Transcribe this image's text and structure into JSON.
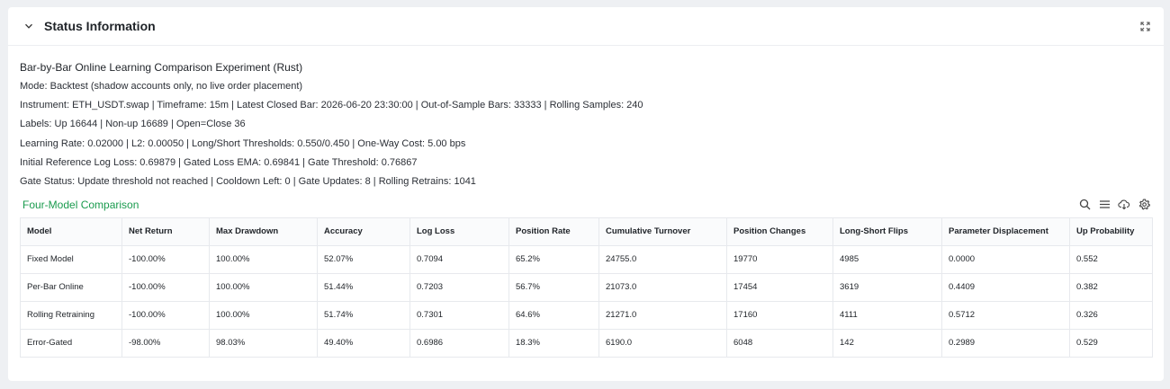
{
  "panel": {
    "title": "Status Information"
  },
  "info": {
    "experiment_title": "Bar-by-Bar Online Learning Comparison Experiment (Rust)",
    "lines": [
      "Mode: Backtest (shadow accounts only, no live order placement)",
      "Instrument: ETH_USDT.swap | Timeframe: 15m | Latest Closed Bar: 2026-06-20 23:30:00 | Out-of-Sample Bars: 33333 | Rolling Samples: 240",
      "Labels: Up 16644 | Non-up 16689 | Open=Close 36",
      "Learning Rate: 0.02000 | L2: 0.00050 | Long/Short Thresholds: 0.550/0.450 | One-Way Cost: 5.00 bps",
      "Initial Reference Log Loss: 0.69879 | Gated Loss EMA: 0.69841 | Gate Threshold: 0.76867",
      "Gate Status: Update threshold not reached | Cooldown Left: 0 | Gate Updates: 8 | Rolling Retrains: 1041"
    ]
  },
  "comparison": {
    "title": "Four-Model Comparison",
    "icons": [
      "search-icon",
      "list-icon",
      "cloud-download-icon",
      "gear-icon"
    ],
    "columns": [
      "Model",
      "Net Return",
      "Max Drawdown",
      "Accuracy",
      "Log Loss",
      "Position Rate",
      "Cumulative Turnover",
      "Position Changes",
      "Long-Short Flips",
      "Parameter Displacement",
      "Up Probability"
    ],
    "rows": [
      [
        "Fixed Model",
        "-100.00%",
        "100.00%",
        "52.07%",
        "0.7094",
        "65.2%",
        "24755.0",
        "19770",
        "4985",
        "0.0000",
        "0.552"
      ],
      [
        "Per-Bar Online",
        "-100.00%",
        "100.00%",
        "51.44%",
        "0.7203",
        "56.7%",
        "21073.0",
        "17454",
        "3619",
        "0.4409",
        "0.382"
      ],
      [
        "Rolling Retraining",
        "-100.00%",
        "100.00%",
        "51.74%",
        "0.7301",
        "64.6%",
        "21271.0",
        "17160",
        "4111",
        "0.5712",
        "0.326"
      ],
      [
        "Error-Gated",
        "-98.00%",
        "98.03%",
        "49.40%",
        "0.6986",
        "18.3%",
        "6190.0",
        "6048",
        "142",
        "0.2989",
        "0.529"
      ]
    ]
  },
  "colors": {
    "accent_green": "#1a9b4e",
    "background": "#eef0f3",
    "panel": "#ffffff"
  }
}
